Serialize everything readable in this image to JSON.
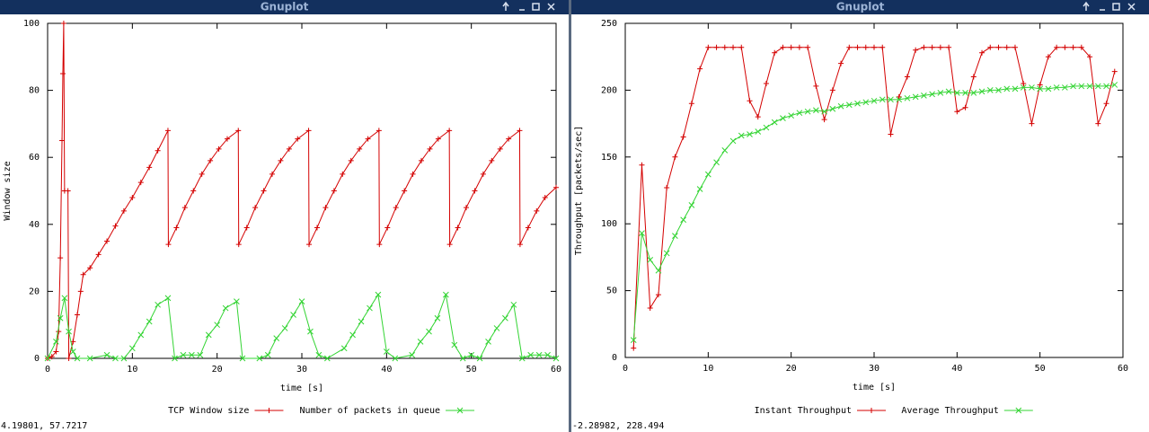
{
  "windows": [
    {
      "title": "Gnuplot",
      "status": "4.19801,  57.7217"
    },
    {
      "title": "Gnuplot",
      "status": "-2.28982,  228.494"
    }
  ],
  "chart_data": [
    {
      "type": "line",
      "xlabel": "time [s]",
      "ylabel": "Window size",
      "xlim": [
        0,
        60
      ],
      "ylim": [
        0,
        100
      ],
      "xticks": [
        0,
        10,
        20,
        30,
        40,
        50,
        60
      ],
      "yticks": [
        0,
        20,
        40,
        60,
        80,
        100
      ],
      "series": [
        {
          "name": "TCP Window size",
          "color": "#d40000",
          "marker": "plus",
          "x": [
            0,
            0.5,
            1,
            1.3,
            1.5,
            1.7,
            1.8,
            1.9,
            2.0,
            2.4,
            2.5,
            3.0,
            3.5,
            3.9,
            4.2,
            5,
            6,
            7,
            8,
            9,
            10,
            11,
            12,
            13,
            14.2,
            14.25,
            15.2,
            16.2,
            17.2,
            18.2,
            19.2,
            20.2,
            21.2,
            22.5,
            22.55,
            23.5,
            24.5,
            25.5,
            26.5,
            27.5,
            28.5,
            29.5,
            30.8,
            30.85,
            31.8,
            32.8,
            33.8,
            34.8,
            35.8,
            36.8,
            37.8,
            39.1,
            39.15,
            40.1,
            41.1,
            42.1,
            43.1,
            44.1,
            45.1,
            46.1,
            47.4,
            47.45,
            48.4,
            49.4,
            50.4,
            51.4,
            52.4,
            53.4,
            54.4,
            55.7,
            55.75,
            56.7,
            57.7,
            58.7,
            60
          ],
          "values": [
            0,
            0.5,
            2,
            8,
            30,
            65,
            85,
            100,
            50,
            50,
            0,
            5,
            13,
            20,
            25,
            27,
            31,
            35,
            39.5,
            44,
            48,
            52.5,
            57,
            62,
            68,
            34,
            39,
            45,
            50,
            55,
            59,
            62.5,
            65.5,
            68,
            34,
            39,
            45,
            50,
            55,
            59,
            62.5,
            65.5,
            68,
            34,
            39,
            45,
            50,
            55,
            59,
            62.5,
            65.5,
            68,
            34,
            39,
            45,
            50,
            55,
            59,
            62.5,
            65.5,
            68,
            34,
            39,
            45,
            50,
            55,
            59,
            62.5,
            65.5,
            68,
            34,
            39,
            44,
            48,
            51
          ]
        },
        {
          "name": "Number of packets in queue",
          "color": "#33d433",
          "marker": "cross",
          "x": [
            0,
            1,
            1.5,
            2,
            2.5,
            3,
            3.5,
            5,
            7,
            8,
            9,
            10,
            11,
            12,
            13,
            14.2,
            15,
            16,
            17,
            18,
            19,
            20,
            21,
            22.3,
            23,
            25,
            26,
            27,
            28,
            29,
            30,
            31,
            32,
            33,
            35,
            36,
            37,
            38,
            39,
            40,
            41,
            43,
            44,
            45,
            46,
            47,
            48,
            49,
            50,
            51,
            52,
            53,
            54,
            55,
            56,
            57,
            58,
            59,
            60
          ],
          "values": [
            0,
            5,
            12,
            18,
            8,
            2,
            0,
            0,
            1,
            0,
            0,
            3,
            7,
            11,
            16,
            18,
            0,
            1,
            1,
            1,
            7,
            10,
            15,
            17,
            0,
            0,
            1,
            6,
            9,
            13,
            17,
            8,
            1,
            0,
            3,
            7,
            11,
            15,
            19,
            2,
            0,
            1,
            5,
            8,
            12,
            19,
            4,
            0,
            1,
            0,
            5,
            9,
            12,
            16,
            0,
            1,
            1,
            1,
            0
          ]
        }
      ]
    },
    {
      "type": "line",
      "xlabel": "time [s]",
      "ylabel": "Throughput [packets/sec]",
      "xlim": [
        0,
        60
      ],
      "ylim": [
        0,
        250
      ],
      "xticks": [
        0,
        10,
        20,
        30,
        40,
        50,
        60
      ],
      "yticks": [
        0,
        50,
        100,
        150,
        200,
        250
      ],
      "series": [
        {
          "name": "Instant Throughput",
          "color": "#d40000",
          "marker": "plus",
          "x": [
            1,
            2,
            3,
            4,
            5,
            6,
            7,
            8,
            9,
            10,
            11,
            12,
            13,
            14,
            15,
            16,
            17,
            18,
            19,
            20,
            21,
            22,
            23,
            24,
            25,
            26,
            27,
            28,
            29,
            30,
            31,
            32,
            33,
            34,
            35,
            36,
            37,
            38,
            39,
            40,
            41,
            42,
            43,
            44,
            45,
            46,
            47,
            48,
            49,
            50,
            51,
            52,
            53,
            54,
            55,
            56,
            57,
            58,
            59
          ],
          "values": [
            7,
            144,
            37,
            47,
            127,
            150,
            165,
            190,
            216,
            232,
            232,
            232,
            232,
            232,
            192,
            180,
            205,
            228,
            232,
            232,
            232,
            232,
            203,
            178,
            200,
            220,
            232,
            232,
            232,
            232,
            232,
            167,
            195,
            210,
            230,
            232,
            232,
            232,
            232,
            184,
            187,
            210,
            228,
            232,
            232,
            232,
            232,
            205,
            175,
            204,
            225,
            232,
            232,
            232,
            232,
            225,
            175,
            190,
            214
          ]
        },
        {
          "name": "Average Throughput",
          "color": "#33d433",
          "marker": "cross",
          "x": [
            1,
            2,
            3,
            4,
            5,
            6,
            7,
            8,
            9,
            10,
            11,
            12,
            13,
            14,
            15,
            16,
            17,
            18,
            19,
            20,
            21,
            22,
            23,
            24,
            25,
            26,
            27,
            28,
            29,
            30,
            31,
            32,
            33,
            34,
            35,
            36,
            37,
            38,
            39,
            40,
            41,
            42,
            43,
            44,
            45,
            46,
            47,
            48,
            49,
            50,
            51,
            52,
            53,
            54,
            55,
            56,
            57,
            58,
            59
          ],
          "values": [
            13,
            93,
            73,
            65,
            78,
            91,
            103,
            114,
            126,
            137,
            146,
            155,
            162,
            166,
            167,
            169,
            172,
            176,
            179,
            181,
            183,
            184,
            185,
            184,
            186,
            188,
            189,
            190,
            191,
            192,
            193,
            193,
            193,
            194,
            195,
            196,
            197,
            198,
            199,
            198,
            198,
            198,
            199,
            200,
            200,
            201,
            201,
            202,
            202,
            201,
            201,
            202,
            202,
            203,
            203,
            203,
            203,
            203,
            204
          ]
        }
      ]
    }
  ]
}
